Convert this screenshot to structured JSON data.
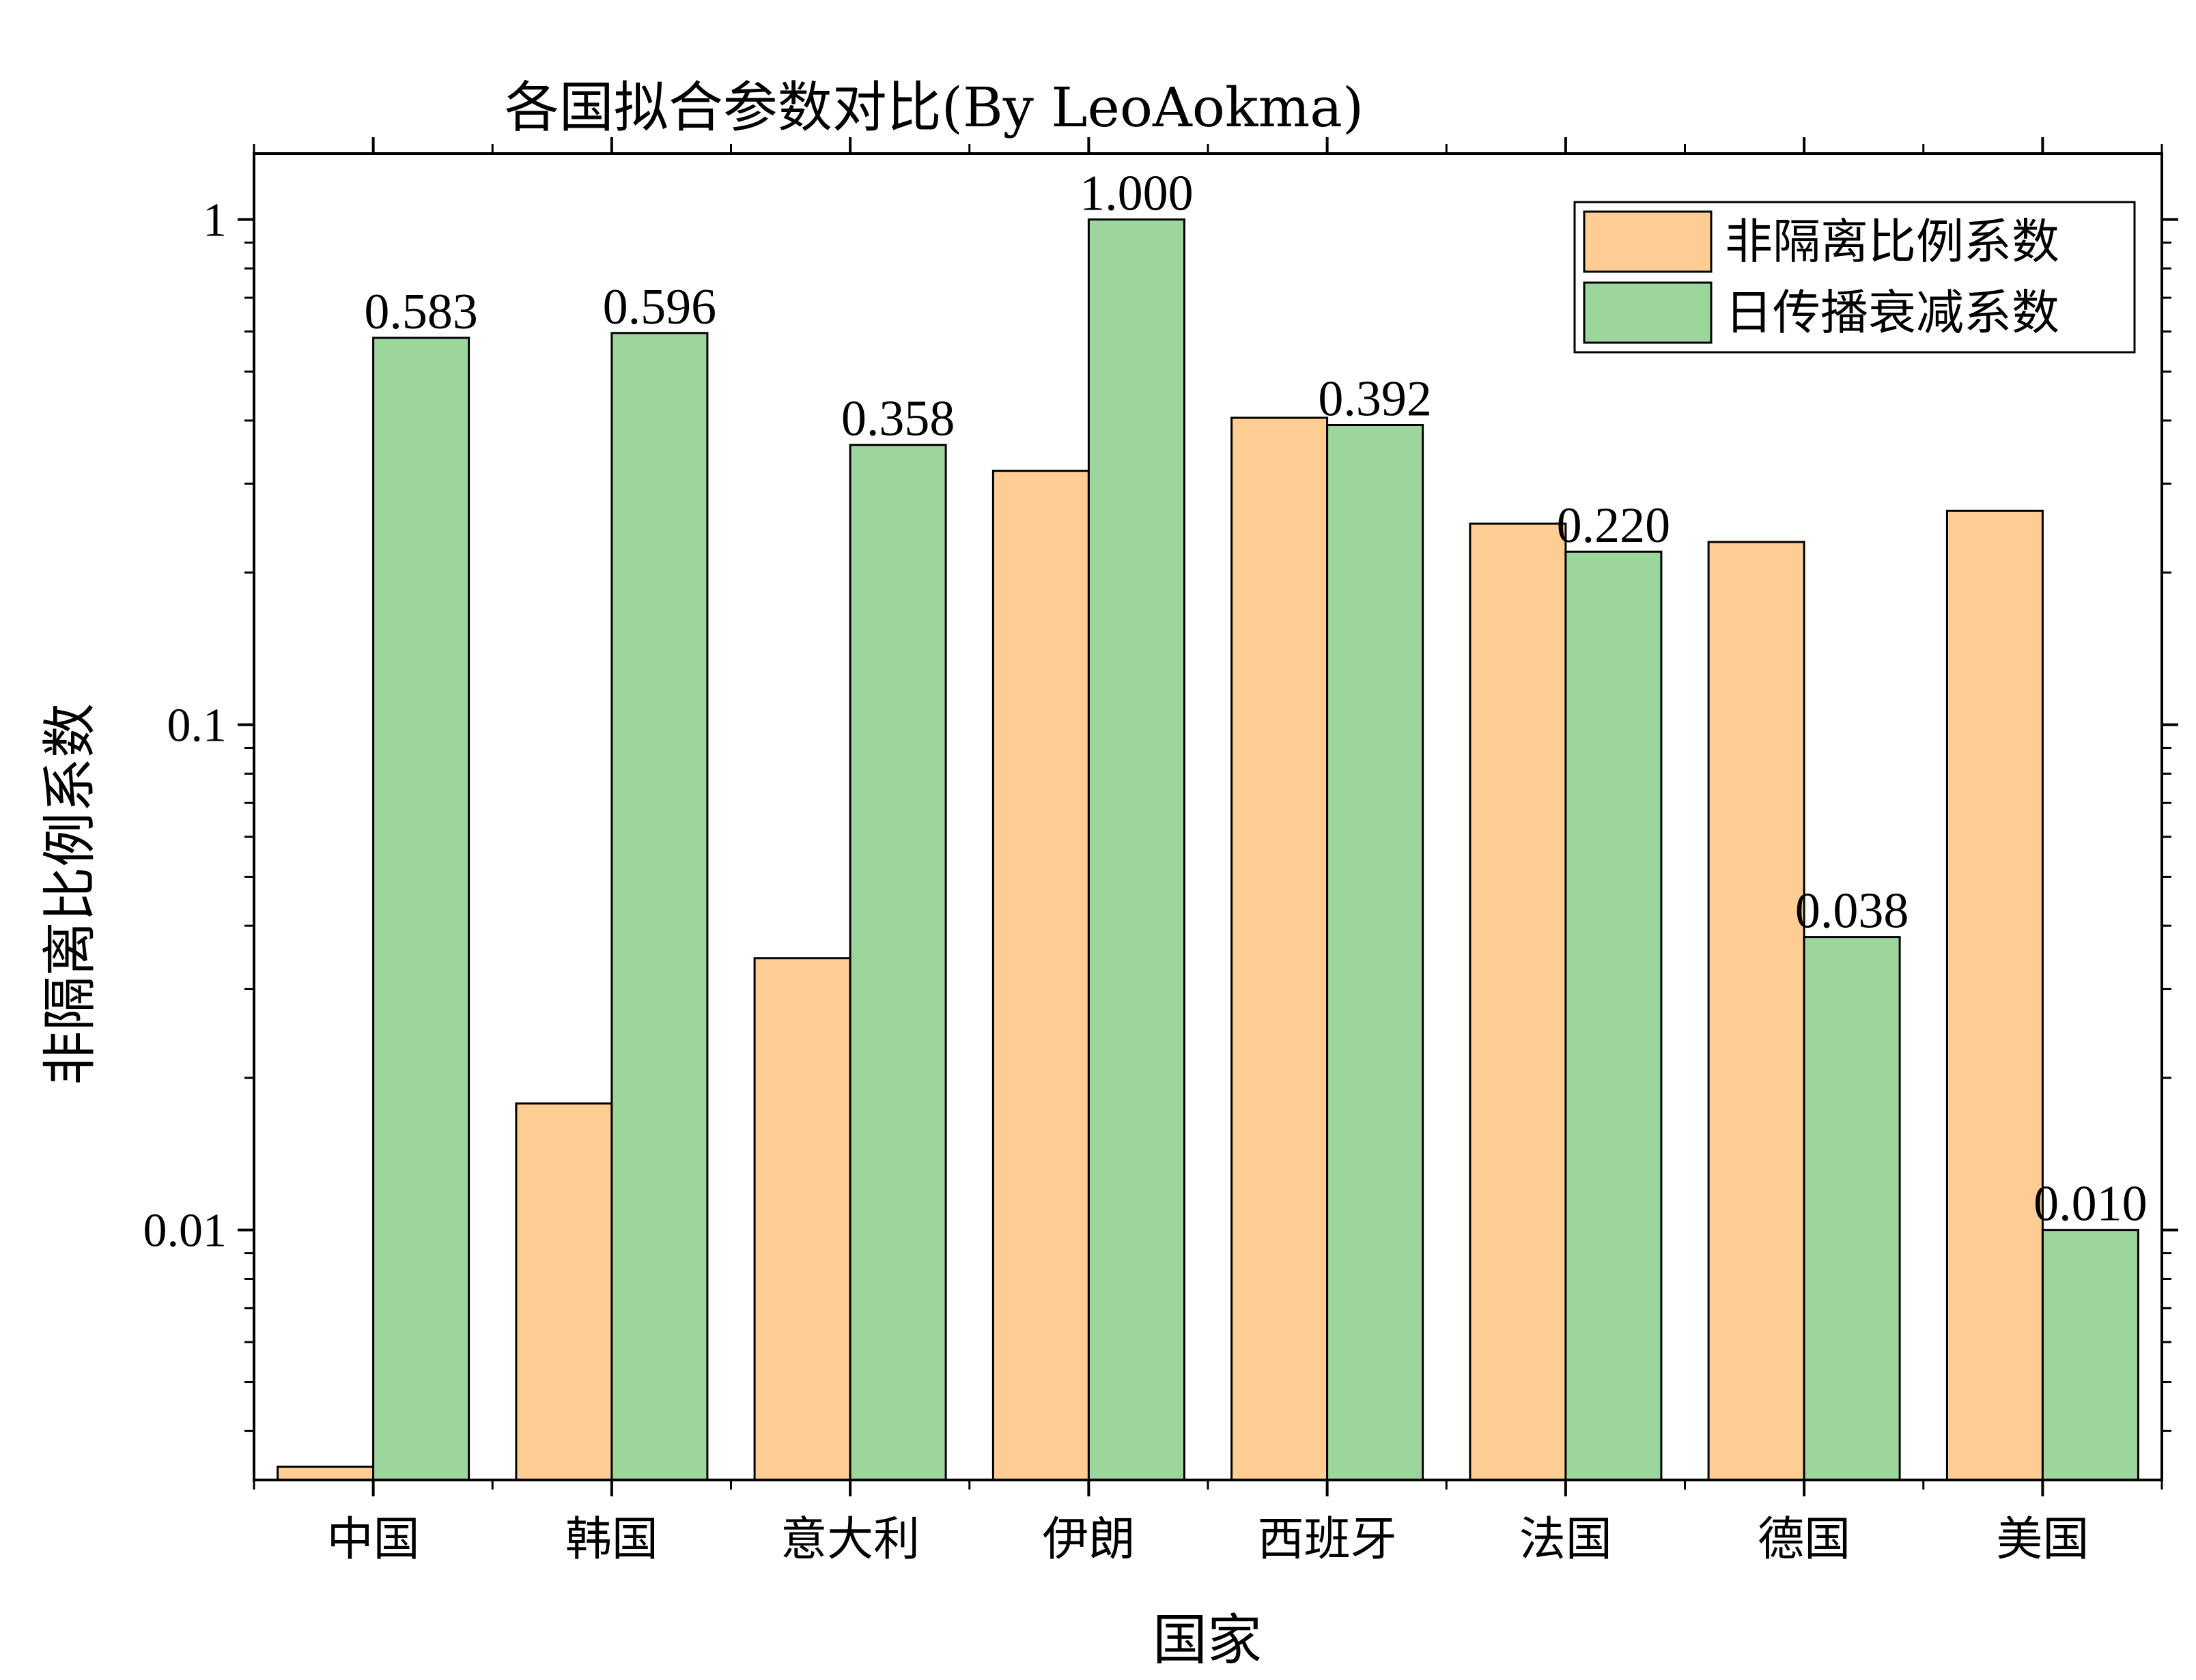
{
  "chart_data": {
    "type": "bar",
    "title": "各国拟合参数对比(By LeoAokma)",
    "xlabel": "国家",
    "ylabel": "非隔离比例系数",
    "yscale": "log",
    "ylim": [
      0.0032,
      1.35
    ],
    "yticks": [
      {
        "value": 0.01,
        "label": "0.01"
      },
      {
        "value": 0.1,
        "label": "0.1"
      },
      {
        "value": 1,
        "label": "1"
      }
    ],
    "categories": [
      "中国",
      "韩国",
      "意大利",
      "伊朗",
      "西班牙",
      "法国",
      "德国",
      "美国"
    ],
    "series": [
      {
        "name": "非隔离比例系数",
        "color": "#FDCD94",
        "values": [
          0.0034,
          0.0178,
          0.0345,
          0.318,
          0.405,
          0.25,
          0.23,
          0.265
        ],
        "labels": [
          "",
          "",
          "",
          "",
          "",
          "",
          "",
          ""
        ]
      },
      {
        "name": "日传播衰减系数",
        "color": "#9DD69D",
        "values": [
          0.583,
          0.596,
          0.358,
          1.0,
          0.392,
          0.22,
          0.038,
          0.01
        ],
        "labels": [
          "0.583",
          "0.596",
          "0.358",
          "1.000",
          "0.392",
          "0.220",
          "0.038",
          "0.010"
        ]
      }
    ],
    "legend": {
      "position": "top-right"
    },
    "grid": false
  }
}
